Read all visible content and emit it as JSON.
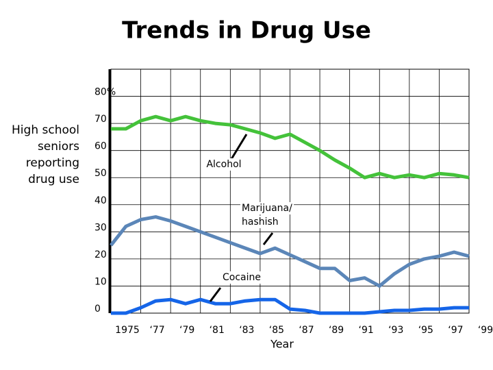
{
  "chart_data": {
    "type": "line",
    "title": "Trends in Drug Use",
    "y_label_lines": [
      "High school",
      "seniors",
      "reporting",
      "drug use"
    ],
    "x_label": "Year",
    "x": [
      1975,
      1976,
      1977,
      1978,
      1979,
      1980,
      1981,
      1982,
      1983,
      1984,
      1985,
      1986,
      1987,
      1988,
      1989,
      1990,
      1991,
      1992,
      1993,
      1994,
      1995,
      1996,
      1997,
      1998,
      1999
    ],
    "series": [
      {
        "name": "Alcohol",
        "color": "#44c23a",
        "values": [
          68,
          68,
          71,
          72.5,
          71,
          72.5,
          71,
          70,
          69.5,
          68,
          66.5,
          64.5,
          66,
          63,
          60,
          56.5,
          53.5,
          50,
          51.5,
          50,
          51,
          50,
          51.5,
          51,
          50
        ]
      },
      {
        "name": "Marijuana/ hashish",
        "color": "#5b86b8",
        "values": [
          25,
          32,
          34.5,
          35.5,
          34,
          32,
          30,
          28,
          26,
          24,
          22,
          24,
          21.5,
          19,
          16.5,
          16.5,
          12,
          13,
          10,
          14.5,
          18,
          20,
          21,
          22.5,
          21
        ]
      },
      {
        "name": "Cocaine",
        "color": "#1565e8",
        "values": [
          0,
          0,
          2,
          4.5,
          5,
          3.5,
          5,
          3.5,
          3.5,
          4.5,
          5,
          5,
          1.5,
          1,
          0,
          0,
          0,
          0,
          0.5,
          1,
          1,
          1.5,
          1.5,
          2,
          2
        ]
      }
    ],
    "annotations": [
      {
        "lines": [
          "Alcohol"
        ]
      },
      {
        "lines": [
          "Marijuana/",
          "hashish"
        ]
      },
      {
        "lines": [
          "Cocaine"
        ]
      }
    ],
    "xlim": [
      1975,
      1999
    ],
    "xticks": [
      {
        "value": 1975,
        "label": "1975"
      },
      {
        "value": 1977,
        "label": "‘77"
      },
      {
        "value": 1979,
        "label": "‘79"
      },
      {
        "value": 1981,
        "label": "‘81"
      },
      {
        "value": 1983,
        "label": "‘83"
      },
      {
        "value": 1985,
        "label": "‘85"
      },
      {
        "value": 1987,
        "label": "‘87"
      },
      {
        "value": 1989,
        "label": "‘89"
      },
      {
        "value": 1991,
        "label": "‘91"
      },
      {
        "value": 1993,
        "label": "‘93"
      },
      {
        "value": 1995,
        "label": "‘95"
      },
      {
        "value": 1997,
        "label": "‘97"
      },
      {
        "value": 1999,
        "label": "‘99"
      }
    ],
    "ylim": [
      0,
      90
    ],
    "yticks": [
      0,
      10,
      20,
      30,
      40,
      50,
      60,
      70,
      {
        "value": 80,
        "label": "80%"
      }
    ],
    "grid": true
  }
}
